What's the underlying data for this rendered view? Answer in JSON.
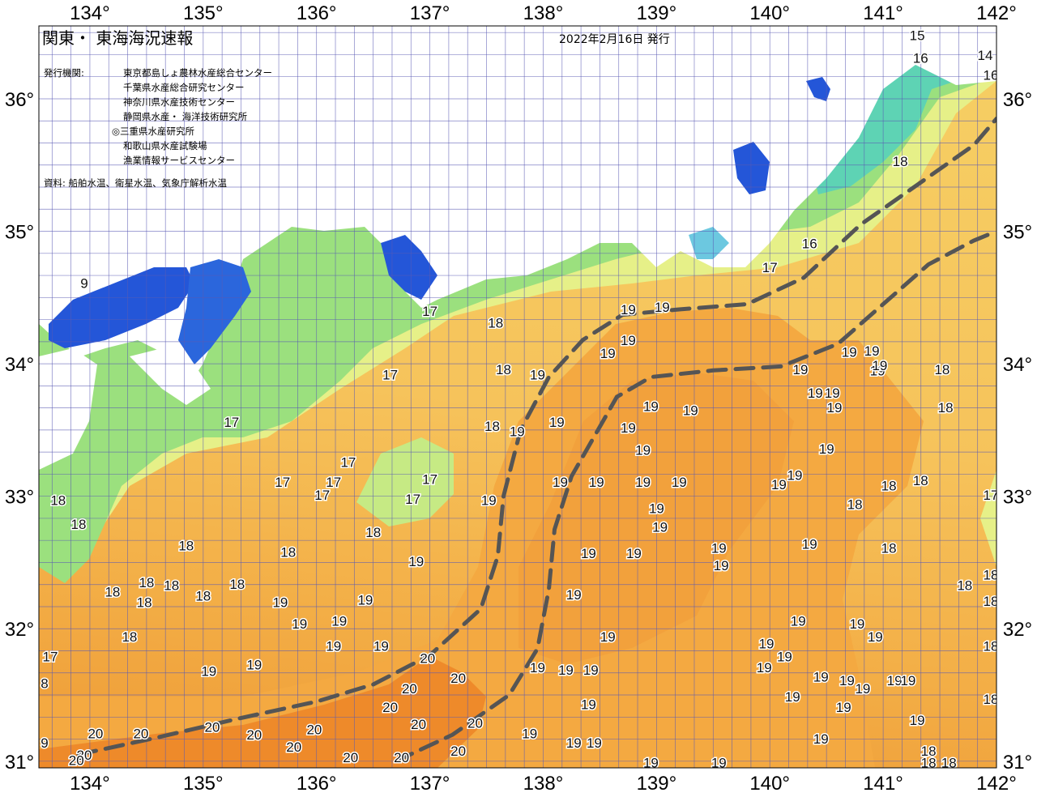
{
  "title": "関東・ 東海海況速報",
  "issued": "2022年2月16日 発行",
  "agencies_label": "発行機関:",
  "agencies": [
    "東京都島しょ農林水産総合センター",
    "千葉県水産総合研究センター",
    "神奈川県水産技術センター",
    "静岡県水産・ 海洋技術研究所",
    "◎三重県水産研究所",
    "和歌山県水産試験場",
    "漁業情報サービスセンター"
  ],
  "sources": "資料: 船舶水温、衛星水温、気象庁解析水温",
  "lon_ticks": [
    "134°",
    "135°",
    "136°",
    "137°",
    "138°",
    "139°",
    "140°",
    "141°",
    "142°"
  ],
  "lat_ticks": [
    "36°",
    "35°",
    "34°",
    "33°",
    "32°",
    "31°"
  ],
  "lon_values": [
    134,
    135,
    136,
    137,
    138,
    139,
    140,
    141,
    142
  ],
  "lat_values": [
    36,
    35,
    34,
    33,
    32,
    31
  ],
  "extent": {
    "lon": [
      133.55,
      142.0
    ],
    "lat": [
      30.95,
      36.55
    ]
  },
  "colors": {
    "t14_15": "#3db4e6",
    "t15_16": "#5ed3b4",
    "t16_17": "#8fe082",
    "t17_18": "#e6f088",
    "t18_19": "#f6cd62",
    "t19_20": "#f4a941",
    "t20": "#ee8a2a",
    "inland_water": "#2456d8",
    "grid": "#5a5ab4",
    "current_axis": "#555555"
  },
  "temperature_labels": [
    {
      "t": "15",
      "lon": 141.3,
      "lat": 36.47
    },
    {
      "t": "16",
      "lon": 141.33,
      "lat": 36.3
    },
    {
      "t": "14",
      "lon": 141.9,
      "lat": 36.32
    },
    {
      "t": "16",
      "lon": 141.95,
      "lat": 36.17
    },
    {
      "t": "9",
      "lon": 133.95,
      "lat": 34.6
    },
    {
      "t": "18",
      "lon": 141.15,
      "lat": 35.52
    },
    {
      "t": "16",
      "lon": 140.35,
      "lat": 34.9
    },
    {
      "t": "17",
      "lon": 140.0,
      "lat": 34.72
    },
    {
      "t": "19",
      "lon": 138.75,
      "lat": 34.4
    },
    {
      "t": "19",
      "lon": 139.05,
      "lat": 34.42
    },
    {
      "t": "19",
      "lon": 138.75,
      "lat": 34.17
    },
    {
      "t": "19",
      "lon": 138.57,
      "lat": 34.07
    },
    {
      "t": "17",
      "lon": 137.0,
      "lat": 34.39
    },
    {
      "t": "18",
      "lon": 137.58,
      "lat": 34.3
    },
    {
      "t": "18",
      "lon": 137.65,
      "lat": 33.95
    },
    {
      "t": "19",
      "lon": 137.95,
      "lat": 33.91
    },
    {
      "t": "19",
      "lon": 140.7,
      "lat": 34.08
    },
    {
      "t": "19",
      "lon": 140.9,
      "lat": 34.09
    },
    {
      "t": "19",
      "lon": 140.27,
      "lat": 33.95
    },
    {
      "t": "19",
      "lon": 140.95,
      "lat": 33.94
    },
    {
      "t": "19",
      "lon": 140.97,
      "lat": 33.98
    },
    {
      "t": "18",
      "lon": 141.52,
      "lat": 33.95
    },
    {
      "t": "19",
      "lon": 140.4,
      "lat": 33.77
    },
    {
      "t": "19",
      "lon": 140.55,
      "lat": 33.77
    },
    {
      "t": "19",
      "lon": 140.57,
      "lat": 33.66
    },
    {
      "t": "18",
      "lon": 141.55,
      "lat": 33.66
    },
    {
      "t": "17",
      "lon": 136.65,
      "lat": 33.91
    },
    {
      "t": "19",
      "lon": 138.12,
      "lat": 33.55
    },
    {
      "t": "19",
      "lon": 138.95,
      "lat": 33.67
    },
    {
      "t": "19",
      "lon": 139.3,
      "lat": 33.64
    },
    {
      "t": "19",
      "lon": 138.75,
      "lat": 33.51
    },
    {
      "t": "17",
      "lon": 135.25,
      "lat": 33.55
    },
    {
      "t": "18",
      "lon": 137.55,
      "lat": 33.52
    },
    {
      "t": "19",
      "lon": 137.77,
      "lat": 33.48
    },
    {
      "t": "19",
      "lon": 138.88,
      "lat": 33.34
    },
    {
      "t": "19",
      "lon": 140.5,
      "lat": 33.35
    },
    {
      "t": "17",
      "lon": 136.28,
      "lat": 33.25
    },
    {
      "t": "17",
      "lon": 137.0,
      "lat": 33.12
    },
    {
      "t": "19",
      "lon": 138.15,
      "lat": 33.1
    },
    {
      "t": "19",
      "lon": 138.47,
      "lat": 33.1
    },
    {
      "t": "19",
      "lon": 138.88,
      "lat": 33.1
    },
    {
      "t": "19",
      "lon": 139.2,
      "lat": 33.1
    },
    {
      "t": "19",
      "lon": 140.08,
      "lat": 33.08
    },
    {
      "t": "19",
      "lon": 140.22,
      "lat": 33.15
    },
    {
      "t": "18",
      "lon": 141.05,
      "lat": 33.07
    },
    {
      "t": "18",
      "lon": 141.33,
      "lat": 33.11
    },
    {
      "t": "17",
      "lon": 135.7,
      "lat": 33.1
    },
    {
      "t": "17",
      "lon": 136.15,
      "lat": 33.1
    },
    {
      "t": "17",
      "lon": 136.05,
      "lat": 33.0
    },
    {
      "t": "17",
      "lon": 136.85,
      "lat": 32.97
    },
    {
      "t": "19",
      "lon": 137.52,
      "lat": 32.96
    },
    {
      "t": "17",
      "lon": 141.95,
      "lat": 33.0
    },
    {
      "t": "18",
      "lon": 133.72,
      "lat": 32.96
    },
    {
      "t": "18",
      "lon": 140.75,
      "lat": 32.93
    },
    {
      "t": "19",
      "lon": 139.0,
      "lat": 32.9
    },
    {
      "t": "19",
      "lon": 139.03,
      "lat": 32.76
    },
    {
      "t": "18",
      "lon": 133.9,
      "lat": 32.78
    },
    {
      "t": "18",
      "lon": 136.5,
      "lat": 32.72
    },
    {
      "t": "19",
      "lon": 140.35,
      "lat": 32.63
    },
    {
      "t": "18",
      "lon": 141.05,
      "lat": 32.6
    },
    {
      "t": "18",
      "lon": 134.85,
      "lat": 32.62
    },
    {
      "t": "18",
      "lon": 135.75,
      "lat": 32.57
    },
    {
      "t": "19",
      "lon": 138.4,
      "lat": 32.56
    },
    {
      "t": "19",
      "lon": 138.8,
      "lat": 32.56
    },
    {
      "t": "19",
      "lon": 139.55,
      "lat": 32.6
    },
    {
      "t": "19",
      "lon": 139.57,
      "lat": 32.47
    },
    {
      "t": "19",
      "lon": 136.88,
      "lat": 32.5
    },
    {
      "t": "18",
      "lon": 141.95,
      "lat": 32.4
    },
    {
      "t": "18",
      "lon": 134.5,
      "lat": 32.34
    },
    {
      "t": "18",
      "lon": 134.72,
      "lat": 32.32
    },
    {
      "t": "18",
      "lon": 135.3,
      "lat": 32.33
    },
    {
      "t": "18",
      "lon": 141.72,
      "lat": 32.32
    },
    {
      "t": "18",
      "lon": 134.2,
      "lat": 32.27
    },
    {
      "t": "18",
      "lon": 135.0,
      "lat": 32.24
    },
    {
      "t": "19",
      "lon": 138.27,
      "lat": 32.25
    },
    {
      "t": "18",
      "lon": 134.48,
      "lat": 32.19
    },
    {
      "t": "19",
      "lon": 135.68,
      "lat": 32.19
    },
    {
      "t": "19",
      "lon": 136.43,
      "lat": 32.21
    },
    {
      "t": "18",
      "lon": 141.95,
      "lat": 32.2
    },
    {
      "t": "19",
      "lon": 135.85,
      "lat": 32.03
    },
    {
      "t": "19",
      "lon": 136.2,
      "lat": 32.05
    },
    {
      "t": "19",
      "lon": 140.25,
      "lat": 32.05
    },
    {
      "t": "19",
      "lon": 140.77,
      "lat": 32.03
    },
    {
      "t": "19",
      "lon": 140.93,
      "lat": 31.93
    },
    {
      "t": "18",
      "lon": 134.35,
      "lat": 31.93
    },
    {
      "t": "19",
      "lon": 138.57,
      "lat": 31.93
    },
    {
      "t": "19",
      "lon": 139.97,
      "lat": 31.88
    },
    {
      "t": "19",
      "lon": 136.15,
      "lat": 31.86
    },
    {
      "t": "19",
      "lon": 136.57,
      "lat": 31.86
    },
    {
      "t": "18",
      "lon": 141.95,
      "lat": 31.86
    },
    {
      "t": "17",
      "lon": 133.65,
      "lat": 31.78
    },
    {
      "t": "19",
      "lon": 140.13,
      "lat": 31.78
    },
    {
      "t": "20",
      "lon": 136.98,
      "lat": 31.77
    },
    {
      "t": "19",
      "lon": 135.45,
      "lat": 31.72
    },
    {
      "t": "19",
      "lon": 139.95,
      "lat": 31.7
    },
    {
      "t": "19",
      "lon": 137.95,
      "lat": 31.7
    },
    {
      "t": "19",
      "lon": 138.2,
      "lat": 31.68
    },
    {
      "t": "19",
      "lon": 138.42,
      "lat": 31.68
    },
    {
      "t": "19",
      "lon": 135.05,
      "lat": 31.67
    },
    {
      "t": "19",
      "lon": 140.45,
      "lat": 31.63
    },
    {
      "t": "20",
      "lon": 137.25,
      "lat": 31.62
    },
    {
      "t": "19",
      "lon": 140.68,
      "lat": 31.6
    },
    {
      "t": "19",
      "lon": 141.1,
      "lat": 31.6
    },
    {
      "t": "19",
      "lon": 141.22,
      "lat": 31.6
    },
    {
      "t": "8",
      "lon": 133.6,
      "lat": 31.58
    },
    {
      "t": "20",
      "lon": 136.82,
      "lat": 31.54
    },
    {
      "t": "19",
      "lon": 140.82,
      "lat": 31.54
    },
    {
      "t": "19",
      "lon": 140.2,
      "lat": 31.48
    },
    {
      "t": "18",
      "lon": 141.95,
      "lat": 31.46
    },
    {
      "t": "19",
      "lon": 138.4,
      "lat": 31.42
    },
    {
      "t": "19",
      "lon": 140.65,
      "lat": 31.4
    },
    {
      "t": "20",
      "lon": 136.65,
      "lat": 31.4
    },
    {
      "t": "20",
      "lon": 137.4,
      "lat": 31.28
    },
    {
      "t": "19",
      "lon": 141.3,
      "lat": 31.3
    },
    {
      "t": "20",
      "lon": 136.9,
      "lat": 31.27
    },
    {
      "t": "20",
      "lon": 134.05,
      "lat": 31.2
    },
    {
      "t": "20",
      "lon": 134.45,
      "lat": 31.2
    },
    {
      "t": "20",
      "lon": 135.08,
      "lat": 31.25
    },
    {
      "t": "20",
      "lon": 135.98,
      "lat": 31.23
    },
    {
      "t": "19",
      "lon": 137.88,
      "lat": 31.2
    },
    {
      "t": "20",
      "lon": 135.45,
      "lat": 31.19
    },
    {
      "t": "19",
      "lon": 140.45,
      "lat": 31.16
    },
    {
      "t": "19",
      "lon": 138.27,
      "lat": 31.13
    },
    {
      "t": "19",
      "lon": 138.45,
      "lat": 31.13
    },
    {
      "t": "9",
      "lon": 133.6,
      "lat": 31.13
    },
    {
      "t": "20",
      "lon": 135.8,
      "lat": 31.1
    },
    {
      "t": "20",
      "lon": 137.25,
      "lat": 31.07
    },
    {
      "t": "18",
      "lon": 141.4,
      "lat": 31.07
    },
    {
      "t": "20",
      "lon": 133.95,
      "lat": 31.04
    },
    {
      "t": "20",
      "lon": 136.3,
      "lat": 31.02
    },
    {
      "t": "20",
      "lon": 136.75,
      "lat": 31.02
    },
    {
      "t": "20",
      "lon": 133.88,
      "lat": 31.0
    },
    {
      "t": "18",
      "lon": 141.4,
      "lat": 30.98
    },
    {
      "t": "18",
      "lon": 141.58,
      "lat": 30.98
    },
    {
      "t": "19",
      "lon": 138.95,
      "lat": 30.98
    },
    {
      "t": "19",
      "lon": 139.55,
      "lat": 30.98
    }
  ],
  "kuroshio_axes": [
    {
      "name": "",
      "points": [
        [
          133.9,
          31.05
        ],
        [
          134.6,
          31.18
        ],
        [
          135.3,
          31.32
        ],
        [
          136.0,
          31.45
        ],
        [
          136.5,
          31.58
        ],
        [
          137.0,
          31.8
        ],
        [
          137.45,
          32.15
        ],
        [
          137.6,
          32.55
        ],
        [
          137.65,
          33.0
        ],
        [
          137.8,
          33.5
        ],
        [
          138.05,
          33.9
        ],
        [
          138.35,
          34.18
        ],
        [
          138.7,
          34.37
        ],
        [
          139.2,
          34.41
        ],
        [
          139.8,
          34.45
        ],
        [
          140.3,
          34.65
        ],
        [
          140.8,
          35.05
        ],
        [
          141.3,
          35.35
        ],
        [
          141.8,
          35.65
        ],
        [
          142.0,
          35.85
        ]
      ]
    },
    {
      "name": "",
      "points": [
        [
          136.7,
          31.0
        ],
        [
          137.2,
          31.2
        ],
        [
          137.7,
          31.5
        ],
        [
          137.95,
          31.85
        ],
        [
          138.05,
          32.3
        ],
        [
          138.1,
          32.75
        ],
        [
          138.25,
          33.15
        ],
        [
          138.45,
          33.45
        ],
        [
          138.65,
          33.75
        ],
        [
          138.95,
          33.9
        ],
        [
          139.5,
          33.95
        ],
        [
          140.1,
          33.98
        ],
        [
          140.6,
          34.15
        ],
        [
          141.0,
          34.45
        ],
        [
          141.4,
          34.75
        ],
        [
          141.8,
          34.93
        ],
        [
          142.0,
          35.0
        ]
      ]
    }
  ]
}
